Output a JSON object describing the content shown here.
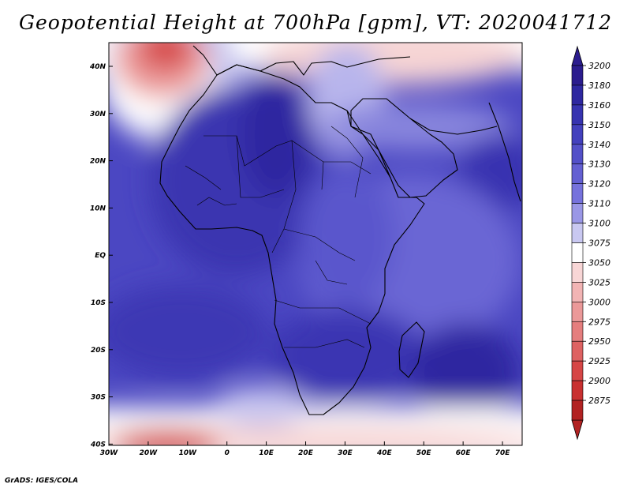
{
  "title": "Geopotential Height at 700hPa [gpm], VT: 2020041712",
  "credit": "GrADS: IGES/COLA",
  "map": {
    "lon_ticks": [
      "30W",
      "20W",
      "10W",
      "0",
      "10E",
      "20E",
      "30E",
      "40E",
      "50E",
      "60E",
      "70E"
    ],
    "lat_ticks": [
      "40N",
      "30N",
      "20N",
      "10N",
      "EQ",
      "10S",
      "20S",
      "30S",
      "40S"
    ]
  },
  "colorbar": {
    "levels": [
      {
        "label": "3200",
        "color": "#2b1c8e"
      },
      {
        "label": "3180",
        "color": "#2e27a0"
      },
      {
        "label": "3160",
        "color": "#3733b0"
      },
      {
        "label": "3150",
        "color": "#4340bd"
      },
      {
        "label": "3140",
        "color": "#5350c8"
      },
      {
        "label": "3130",
        "color": "#6460d2"
      },
      {
        "label": "3120",
        "color": "#7672dc"
      },
      {
        "label": "3110",
        "color": "#9a97e6"
      },
      {
        "label": "3100",
        "color": "#c9c8f1"
      },
      {
        "label": "3075",
        "color": "#ffffff"
      },
      {
        "label": "3050",
        "color": "#f8d6d6"
      },
      {
        "label": "3025",
        "color": "#f2b4b4"
      },
      {
        "label": "3000",
        "color": "#eb9999"
      },
      {
        "label": "2975",
        "color": "#e57e7e"
      },
      {
        "label": "2950",
        "color": "#de6262"
      },
      {
        "label": "2925",
        "color": "#d64646"
      },
      {
        "label": "2900",
        "color": "#c93030"
      },
      {
        "label": "2875",
        "color": "#b22222"
      }
    ],
    "top_arrow_color": "#2b1c8e",
    "bottom_arrow_color": "#b22222"
  }
}
